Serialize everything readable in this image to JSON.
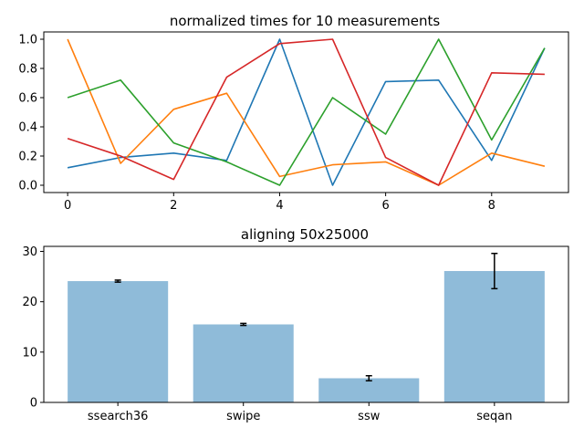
{
  "chart_data": [
    {
      "type": "line",
      "title": "normalized times for 10 measurements",
      "xlabel": "",
      "ylabel": "",
      "x": [
        0,
        1,
        2,
        3,
        4,
        5,
        6,
        7,
        8,
        9
      ],
      "xlim": [
        -0.45,
        9.45
      ],
      "ylim": [
        -0.05,
        1.05
      ],
      "xticks": [
        0,
        2,
        4,
        6,
        8
      ],
      "yticks": [
        0.0,
        0.2,
        0.4,
        0.6,
        0.8,
        1.0
      ],
      "xtick_labels": [
        "0",
        "2",
        "4",
        "6",
        "8"
      ],
      "ytick_labels": [
        "0.0",
        "0.2",
        "0.4",
        "0.6",
        "0.8",
        "1.0"
      ],
      "grid": false,
      "series": [
        {
          "color": "#1f77b4",
          "values": [
            0.12,
            0.19,
            0.22,
            0.17,
            1.0,
            0.0,
            0.71,
            0.72,
            0.17,
            0.94
          ]
        },
        {
          "color": "#ff7f0e",
          "values": [
            1.0,
            0.15,
            0.52,
            0.63,
            0.06,
            0.14,
            0.16,
            0.0,
            0.22,
            0.13
          ]
        },
        {
          "color": "#2ca02c",
          "values": [
            0.6,
            0.72,
            0.29,
            0.16,
            0.0,
            0.6,
            0.35,
            1.0,
            0.31,
            0.94
          ]
        },
        {
          "color": "#d62728",
          "values": [
            0.32,
            0.2,
            0.04,
            0.74,
            0.97,
            1.0,
            0.19,
            0.0,
            0.77,
            0.76
          ]
        }
      ]
    },
    {
      "type": "bar",
      "title": "aligning 50x25000",
      "xlabel": "",
      "ylabel": "",
      "categories": [
        "ssearch36",
        "swipe",
        "ssw",
        "seqan"
      ],
      "values": [
        24.1,
        15.5,
        4.8,
        26.1
      ],
      "errors": [
        0.2,
        0.2,
        0.5,
        3.5
      ],
      "ylim": [
        0,
        31
      ],
      "yticks": [
        0,
        10,
        20,
        30
      ],
      "ytick_labels": [
        "0",
        "10",
        "20",
        "30"
      ],
      "bar_color": "#8fbbd9",
      "grid": false
    }
  ]
}
